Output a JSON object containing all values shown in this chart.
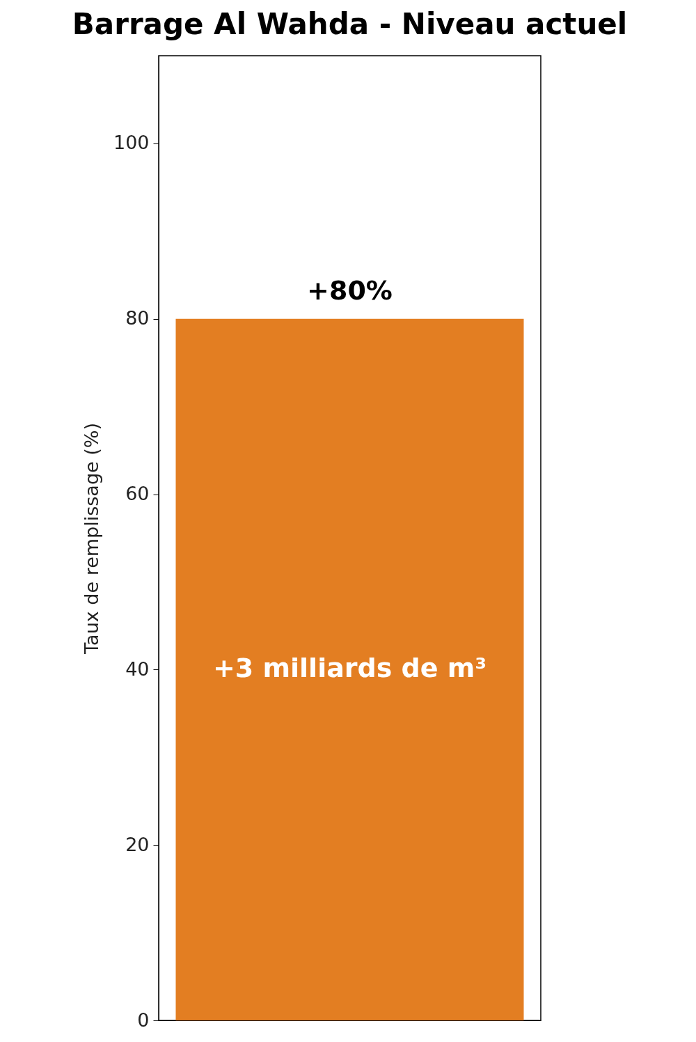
{
  "chart_data": {
    "type": "bar",
    "title": "Barrage Al Wahda - Niveau actuel",
    "ylabel": "Taux de remplissage (%)",
    "categories": [
      null
    ],
    "values": [
      80
    ],
    "color": "#e37e22",
    "value_labels": [
      "+80%"
    ],
    "annotations": [
      "+3 milliards de m³"
    ],
    "ylim": [
      0,
      110
    ],
    "yticks": [
      0,
      20,
      40,
      60,
      80,
      100
    ],
    "tick_labels": "y"
  }
}
